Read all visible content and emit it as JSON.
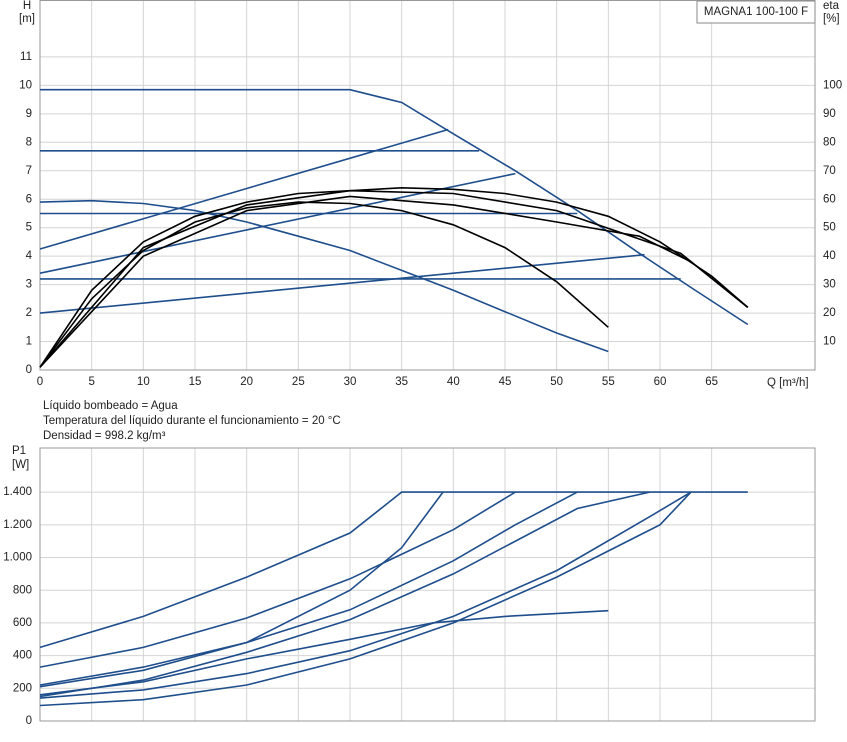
{
  "chart_data": [
    {
      "type": "line",
      "title": "MAGNA1 100-100 F",
      "y_label": "H",
      "y_unit": "[m]",
      "y2_label": "eta",
      "y2_unit": "[%]",
      "x_label": "Q [m³/h]",
      "xlim": [
        0,
        75
      ],
      "xticks": [
        0,
        5,
        10,
        15,
        20,
        25,
        30,
        35,
        40,
        45,
        50,
        55,
        60,
        65
      ],
      "ylim": [
        0,
        13
      ],
      "yticks": [
        0,
        1,
        2,
        3,
        4,
        5,
        6,
        7,
        8,
        9,
        10,
        11
      ],
      "y2lim": [
        0,
        130
      ],
      "y2ticks": [
        10,
        20,
        30,
        40,
        50,
        60,
        70,
        80,
        90,
        100
      ],
      "grid": true,
      "series": [
        {
          "color": "#1f4e8c",
          "x": [
            0,
            30,
            35,
            40,
            46,
            52,
            58,
            63,
            68.5
          ],
          "values": [
            9.85,
            9.85,
            9.4,
            8.3,
            7.0,
            5.6,
            4.1,
            2.9,
            1.6
          ]
        },
        {
          "color": "#1f4e8c",
          "x": [
            0,
            42.5
          ],
          "values": [
            7.7,
            7.7
          ]
        },
        {
          "color": "#1f4e8c",
          "x": [
            0,
            52
          ],
          "values": [
            5.5,
            5.5
          ]
        },
        {
          "color": "#1f4e8c",
          "x": [
            0,
            62
          ],
          "values": [
            3.2,
            3.2
          ]
        },
        {
          "color": "#1f4e8c",
          "x": [
            0,
            39.5
          ],
          "values": [
            4.25,
            8.45
          ]
        },
        {
          "color": "#1f4e8c",
          "x": [
            0,
            46
          ],
          "values": [
            3.4,
            6.9
          ]
        },
        {
          "color": "#1f4e8c",
          "x": [
            0,
            58.5
          ],
          "values": [
            2.0,
            4.05
          ]
        },
        {
          "color": "#1f4e8c",
          "x": [
            0,
            5,
            10,
            15,
            20,
            25,
            30,
            35,
            40,
            45,
            50,
            55
          ],
          "values": [
            5.9,
            5.95,
            5.85,
            5.6,
            5.2,
            4.7,
            4.2,
            3.5,
            2.8,
            2.05,
            1.3,
            0.65
          ]
        },
        {
          "color": "#000000",
          "axis": "y2",
          "x": [
            0,
            5,
            10,
            15,
            20,
            25,
            30,
            35,
            40,
            45,
            50,
            55,
            60,
            65,
            68.5
          ],
          "values": [
            1,
            28,
            45,
            54,
            59,
            62,
            63,
            64,
            63.5,
            62,
            59,
            54,
            45,
            33,
            22
          ]
        },
        {
          "color": "#000000",
          "axis": "y2",
          "x": [
            0,
            5,
            10,
            15,
            20,
            25,
            30,
            35,
            40,
            45,
            50,
            55
          ],
          "values": [
            1,
            25,
            42,
            52,
            57,
            59,
            58.5,
            56,
            51,
            43,
            31,
            15
          ]
        },
        {
          "color": "#000000",
          "axis": "y2",
          "x": [
            0,
            10,
            20,
            30,
            40,
            50,
            58,
            63,
            68.5
          ],
          "values": [
            1,
            40,
            56,
            61,
            58,
            52,
            47,
            38,
            22
          ]
        },
        {
          "color": "#000000",
          "axis": "y2",
          "x": [
            0,
            10,
            20,
            30,
            40,
            50,
            62,
            68.5
          ],
          "values": [
            1,
            43,
            58,
            63,
            62,
            56,
            41,
            22
          ]
        }
      ]
    },
    {
      "type": "line",
      "y_label": "P1",
      "y_unit": "[W]",
      "notes": [
        "Líquido bombeado = Agua",
        "Temperatura del líquido durante el funcionamiento = 20 °C",
        "Densidad = 998.2 kg/m³"
      ],
      "xlim": [
        0,
        75
      ],
      "ylim": [
        0,
        1670
      ],
      "yticks": [
        0,
        200,
        400,
        600,
        800,
        {
          "value": 1000,
          "label": "1.000"
        },
        {
          "value": 1200,
          "label": "1.200"
        },
        {
          "value": 1400,
          "label": "1.400"
        }
      ],
      "grid": true,
      "series": [
        {
          "color": "#1f4e8c",
          "x": [
            0,
            10,
            20,
            30,
            35,
            68.5
          ],
          "values": [
            450,
            640,
            880,
            1150,
            1400,
            1400
          ]
        },
        {
          "color": "#1f4e8c",
          "x": [
            0,
            10,
            20,
            30,
            40,
            46
          ],
          "values": [
            330,
            450,
            630,
            870,
            1170,
            1400
          ]
        },
        {
          "color": "#1f4e8c",
          "x": [
            0,
            10,
            20,
            30,
            35,
            39
          ],
          "values": [
            210,
            310,
            480,
            800,
            1060,
            1400
          ]
        },
        {
          "color": "#1f4e8c",
          "x": [
            0,
            10,
            20,
            30,
            40,
            46,
            52
          ],
          "values": [
            220,
            330,
            480,
            680,
            980,
            1200,
            1400
          ]
        },
        {
          "color": "#1f4e8c",
          "x": [
            0,
            10,
            20,
            30,
            40,
            52,
            59
          ],
          "values": [
            150,
            250,
            420,
            620,
            900,
            1300,
            1400
          ]
        },
        {
          "color": "#1f4e8c",
          "x": [
            0,
            10,
            20,
            30,
            40,
            50,
            59,
            63
          ],
          "values": [
            140,
            190,
            290,
            430,
            640,
            920,
            1250,
            1400
          ]
        },
        {
          "color": "#1f4e8c",
          "x": [
            0,
            10,
            20,
            30,
            40,
            50,
            60,
            63
          ],
          "values": [
            95,
            130,
            220,
            380,
            600,
            880,
            1200,
            1400
          ]
        },
        {
          "color": "#1f4e8c",
          "x": [
            0,
            10,
            20,
            30,
            38,
            45,
            55
          ],
          "values": [
            160,
            240,
            380,
            500,
            600,
            640,
            675
          ]
        }
      ]
    }
  ]
}
